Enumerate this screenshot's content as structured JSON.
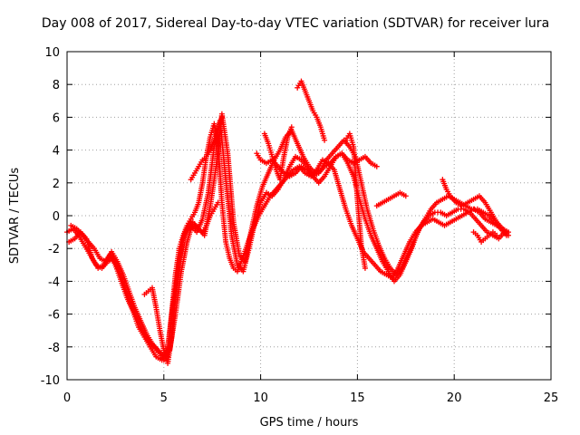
{
  "chart_data": {
    "type": "scatter",
    "title": "Day 008 of 2017, Sidereal Day-to-day VTEC variation (SDTVAR) for receiver lura",
    "xlabel": "GPS time / hours",
    "ylabel": "SDTVAR / TECUs",
    "xlim": [
      0,
      25
    ],
    "ylim": [
      -10,
      10
    ],
    "x_ticks": [
      "0",
      "5",
      "10",
      "15",
      "20",
      "25"
    ],
    "y_ticks": [
      "-10",
      "-8",
      "-6",
      "-4",
      "-2",
      "0",
      "2",
      "4",
      "6",
      "8",
      "10"
    ],
    "grid": true,
    "marker": "+",
    "color": "#ff0000",
    "series": [
      {
        "x": [
          0,
          0.3,
          0.6,
          0.9,
          1.2,
          1.5,
          1.8,
          2.1,
          2.4,
          2.7,
          3.0,
          3.3,
          3.6,
          3.9,
          4.2,
          4.5,
          4.8,
          5.0,
          5.2,
          5.4,
          5.6,
          5.8,
          6.0,
          6.2,
          6.4,
          6.6,
          6.8,
          7.0,
          7.2,
          7.4,
          7.6,
          7.8,
          8.0,
          8.2,
          8.4,
          8.6,
          8.8,
          9.0,
          9.3,
          9.6,
          9.9,
          10.2,
          10.5,
          10.8,
          11.1,
          11.4,
          11.7,
          12.0,
          12.3,
          12.6,
          12.9,
          13.2,
          13.5,
          13.8,
          14.1,
          14.4,
          14.7,
          15.0,
          15.3,
          15.6,
          15.9,
          16.2,
          16.5,
          16.8,
          17.1,
          17.4,
          17.7,
          18.0,
          18.3,
          18.6,
          18.9,
          19.2,
          19.5,
          19.8,
          20.1,
          20.4,
          20.7,
          21.0,
          21.3,
          21.6,
          21.9,
          22.2,
          22.5,
          22.8
        ],
        "y": [
          -1.0,
          -0.8,
          -1.2,
          -1.8,
          -2.4,
          -3.0,
          -3.2,
          -2.8,
          -2.6,
          -3.4,
          -4.4,
          -5.4,
          -6.2,
          -7.0,
          -7.6,
          -8.0,
          -8.4,
          -8.8,
          -8.6,
          -6.0,
          -3.6,
          -2.0,
          -1.2,
          -0.6,
          -0.2,
          0.2,
          0.8,
          2.0,
          3.6,
          4.8,
          5.6,
          4.4,
          0.8,
          -1.6,
          -2.6,
          -3.2,
          -3.4,
          -2.8,
          -1.8,
          -0.8,
          0.0,
          0.6,
          1.2,
          1.6,
          2.0,
          2.4,
          2.8,
          3.0,
          2.6,
          2.4,
          2.8,
          3.4,
          3.2,
          2.8,
          1.6,
          0.4,
          -0.6,
          -1.4,
          -2.2,
          -2.6,
          -3.0,
          -3.4,
          -3.6,
          -3.8,
          -3.2,
          -2.4,
          -1.6,
          -1.0,
          -0.6,
          -0.4,
          -0.2,
          -0.4,
          -0.6,
          -0.4,
          -0.2,
          0.0,
          0.2,
          0.4,
          0.2,
          -0.2,
          -0.4,
          -0.6,
          -0.8,
          -1.0
        ]
      },
      {
        "x": [
          0.2,
          0.5,
          0.8,
          1.1,
          1.4,
          1.7,
          2.0,
          2.3,
          2.6,
          2.9,
          3.2,
          3.5,
          3.8,
          4.1,
          4.4,
          4.7,
          5.0,
          5.3,
          5.6,
          5.9,
          6.2,
          6.5,
          6.8,
          7.1,
          7.4,
          7.7,
          8.0,
          8.3,
          8.6,
          8.9,
          9.2,
          9.5,
          9.8,
          10.1,
          10.4,
          10.7,
          11.0,
          11.3,
          11.6,
          11.9,
          12.2,
          12.5,
          12.8,
          13.1,
          13.4,
          13.7,
          14.0,
          14.3,
          14.6,
          14.9,
          15.2,
          15.5,
          15.8,
          16.1,
          16.4,
          16.7,
          17.0,
          17.3,
          17.6,
          17.9,
          18.2,
          18.5,
          18.8,
          19.1,
          19.4,
          19.7,
          20.0,
          20.3,
          20.6,
          20.9,
          21.2,
          21.5,
          21.8,
          22.1,
          22.4,
          22.7
        ],
        "y": [
          -0.6,
          -0.8,
          -1.2,
          -1.6,
          -2.0,
          -2.6,
          -2.8,
          -2.2,
          -2.8,
          -3.6,
          -4.6,
          -5.6,
          -6.4,
          -7.2,
          -7.8,
          -8.2,
          -8.6,
          -8.2,
          -6.0,
          -3.4,
          -1.6,
          -0.4,
          -0.8,
          -1.2,
          0.6,
          3.0,
          6.2,
          3.8,
          -0.4,
          -2.4,
          -2.8,
          -1.0,
          0.6,
          1.8,
          2.6,
          3.4,
          4.0,
          4.8,
          5.2,
          4.4,
          3.6,
          3.0,
          2.6,
          2.8,
          3.4,
          3.8,
          4.2,
          4.6,
          4.2,
          3.6,
          2.0,
          0.4,
          -0.8,
          -1.8,
          -2.6,
          -3.2,
          -3.6,
          -3.2,
          -2.4,
          -1.6,
          -0.8,
          -0.2,
          0.4,
          0.8,
          1.0,
          1.2,
          1.0,
          0.8,
          0.6,
          0.4,
          0.4,
          0.2,
          0.0,
          -0.4,
          -0.8,
          -1.2
        ]
      },
      {
        "x": [
          0.1,
          0.4,
          0.7,
          1.0,
          1.3,
          1.6,
          1.9,
          2.2,
          2.5,
          2.8,
          3.1,
          3.4,
          3.7,
          4.0,
          4.3,
          4.6,
          4.9,
          5.2,
          5.5,
          5.8,
          6.1,
          6.4,
          6.7,
          7.0,
          7.3,
          7.6,
          7.9,
          8.2,
          8.5,
          8.8,
          9.1,
          9.4,
          9.7,
          10.0,
          10.3,
          10.6,
          10.9,
          11.2,
          11.5,
          11.8,
          12.1,
          12.4,
          12.7,
          13.0,
          13.3,
          13.6,
          13.9,
          14.2,
          14.5,
          14.8,
          15.1,
          15.4,
          15.7,
          16.0,
          16.3,
          16.6,
          16.9,
          17.2,
          17.5,
          17.8,
          18.1,
          18.4,
          18.7,
          19.0,
          19.3,
          19.6,
          19.9,
          20.2,
          20.5,
          20.8,
          21.1,
          21.4,
          21.7,
          22.0,
          22.3,
          22.6
        ],
        "y": [
          -1.6,
          -1.4,
          -1.0,
          -1.4,
          -2.6,
          -3.2,
          -3.0,
          -2.4,
          -3.0,
          -4.0,
          -5.0,
          -5.8,
          -6.8,
          -7.4,
          -8.0,
          -8.6,
          -8.8,
          -8.0,
          -5.2,
          -2.6,
          -1.0,
          -0.6,
          -1.0,
          -0.2,
          1.4,
          4.2,
          5.8,
          2.2,
          -1.2,
          -3.0,
          -3.4,
          -2.0,
          -0.4,
          0.8,
          1.4,
          1.2,
          1.6,
          2.2,
          3.0,
          3.6,
          3.4,
          3.0,
          2.4,
          2.0,
          2.4,
          3.0,
          3.6,
          3.8,
          3.2,
          2.4,
          1.0,
          -0.2,
          -1.2,
          -2.0,
          -2.8,
          -3.4,
          -4.0,
          -3.6,
          -2.8,
          -2.0,
          -1.0,
          -0.4,
          0.0,
          0.2,
          0.2,
          0.0,
          0.2,
          0.4,
          0.4,
          0.2,
          -0.2,
          -0.6,
          -1.0,
          -1.2,
          -1.4,
          -1.0
        ]
      },
      {
        "x": [
          4.0,
          4.2,
          4.4,
          4.6,
          4.8,
          5.0,
          5.2,
          5.4,
          5.6,
          5.8,
          6.0,
          6.2,
          6.4,
          6.6,
          6.8,
          7.0,
          7.2,
          7.4,
          7.6,
          7.8
        ],
        "y": [
          -4.8,
          -4.6,
          -4.4,
          -5.6,
          -7.0,
          -8.2,
          -9.0,
          -7.4,
          -5.0,
          -2.8,
          -1.4,
          -0.8,
          -0.4,
          -0.6,
          -0.8,
          -1.0,
          -0.6,
          0.0,
          0.4,
          0.8
        ]
      },
      {
        "x": [
          6.4,
          6.6,
          6.8,
          7.0,
          7.2,
          7.4,
          7.6,
          7.8,
          8.0
        ],
        "y": [
          2.2,
          2.6,
          3.0,
          3.4,
          3.6,
          4.0,
          4.6,
          5.2,
          6.0
        ]
      },
      {
        "x": [
          9.8,
          10.0,
          10.3,
          10.6,
          10.9,
          11.2,
          11.5,
          11.8,
          12.1,
          12.4,
          12.7,
          13.0,
          13.3,
          13.6,
          13.9,
          14.2,
          14.5,
          14.8,
          15.1,
          15.4,
          15.7,
          16.0
        ],
        "y": [
          3.8,
          3.4,
          3.2,
          3.4,
          3.0,
          2.6,
          2.4,
          2.6,
          3.0,
          2.8,
          2.4,
          2.6,
          3.0,
          3.2,
          3.6,
          3.8,
          3.4,
          3.2,
          3.4,
          3.6,
          3.2,
          3.0
        ]
      },
      {
        "x": [
          10.2,
          10.4,
          10.6,
          10.8,
          11.0,
          11.2,
          11.4,
          11.6
        ],
        "y": [
          5.0,
          4.4,
          3.6,
          2.8,
          2.2,
          3.6,
          4.8,
          5.4
        ]
      },
      {
        "x": [
          11.9,
          12.1,
          12.3,
          12.5,
          12.7,
          12.9,
          13.1,
          13.3
        ],
        "y": [
          7.8,
          8.2,
          7.6,
          7.0,
          6.4,
          6.0,
          5.4,
          4.6
        ]
      },
      {
        "x": [
          14.4,
          14.6,
          14.8,
          15.0,
          15.2,
          15.4
        ],
        "y": [
          4.6,
          5.0,
          4.2,
          1.0,
          -1.8,
          -3.2
        ]
      },
      {
        "x": [
          16.0,
          16.3,
          16.6,
          16.9,
          17.2,
          17.5
        ],
        "y": [
          0.6,
          0.8,
          1.0,
          1.2,
          1.4,
          1.2
        ]
      },
      {
        "x": [
          19.4,
          19.6,
          19.8,
          20.1,
          20.4,
          20.7,
          21.0,
          21.3,
          21.6,
          21.9,
          22.2,
          22.5,
          22.8
        ],
        "y": [
          2.2,
          1.6,
          1.2,
          0.8,
          0.6,
          0.8,
          1.0,
          1.2,
          0.8,
          0.2,
          -0.4,
          -0.8,
          -1.2
        ]
      },
      {
        "x": [
          21.0,
          21.2,
          21.4,
          21.6,
          21.8,
          22.0,
          22.2
        ],
        "y": [
          -1.0,
          -1.2,
          -1.6,
          -1.4,
          -1.2,
          -1.0,
          -1.2
        ]
      }
    ]
  }
}
